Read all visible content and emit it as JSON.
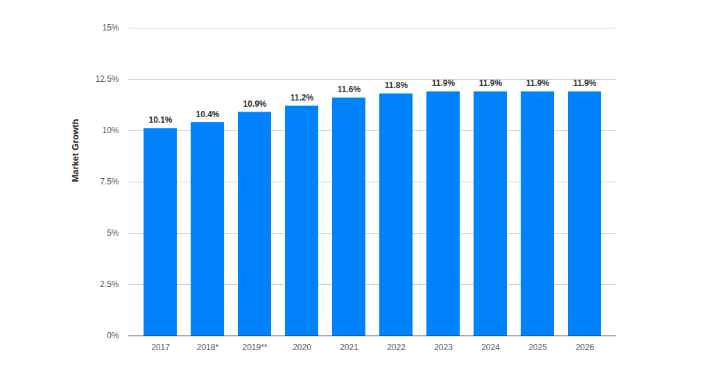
{
  "chart_data": {
    "type": "bar",
    "y_label": "Market Growth",
    "categories": [
      "2017",
      "2018*",
      "2019**",
      "2020",
      "2021",
      "2022",
      "2023",
      "2024",
      "2025",
      "2026"
    ],
    "values": [
      10.1,
      10.4,
      10.9,
      11.2,
      11.6,
      11.8,
      11.9,
      11.9,
      11.9,
      11.9
    ],
    "value_labels": [
      "10.1%",
      "10.4%",
      "10.9%",
      "11.2%",
      "11.6%",
      "11.8%",
      "11.9%",
      "11.9%",
      "11.9%",
      "11.9%"
    ],
    "color": "#0082fb",
    "ylim": [
      0,
      15
    ],
    "yticks": [
      {
        "value": 0,
        "label": "0%"
      },
      {
        "value": 2.5,
        "label": "2.5%"
      },
      {
        "value": 5,
        "label": "5%"
      },
      {
        "value": 7.5,
        "label": "7.5%"
      },
      {
        "value": 10,
        "label": "10%"
      },
      {
        "value": 12.5,
        "label": "12.5%"
      },
      {
        "value": 15,
        "label": "15%"
      }
    ],
    "grid": true,
    "data_labels": true
  }
}
